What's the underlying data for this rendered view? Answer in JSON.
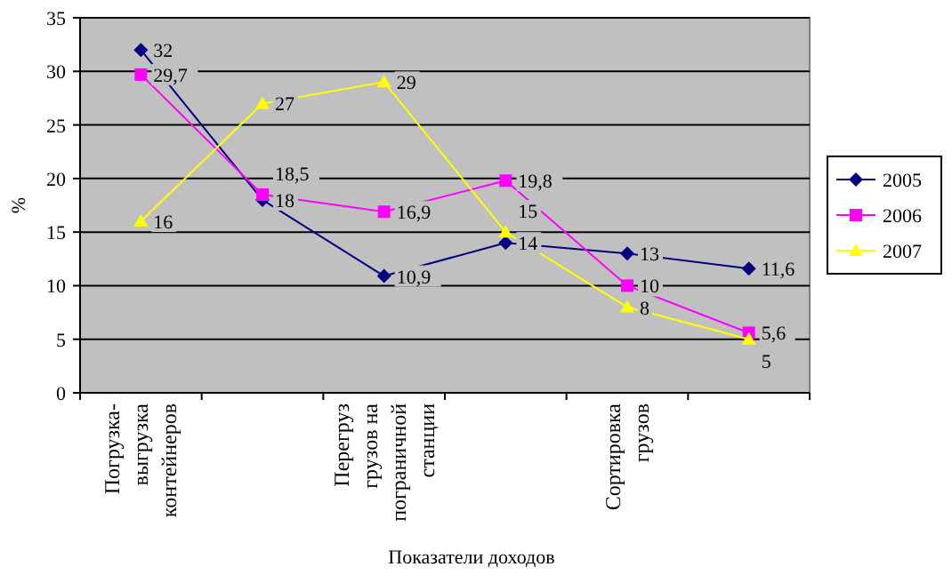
{
  "chart_data": {
    "type": "line",
    "xlabel": "Показатели доходов",
    "ylabel": "%",
    "categories": [
      "Погрузка-выгрузка контейнеров",
      null,
      "Перегруз грузов на пограничной станции",
      null,
      "Сортировка грузов",
      null
    ],
    "ylim": [
      0,
      35
    ],
    "yticks": [
      0,
      5,
      10,
      15,
      20,
      25,
      30,
      35
    ],
    "grid": "y",
    "legend": "right",
    "series": [
      {
        "name": "2005",
        "color": "#000080",
        "marker": "diamond",
        "values": [
          32,
          18,
          10.9,
          14,
          13,
          11.6
        ],
        "value_labels": [
          "32",
          "18",
          "10,9",
          "14",
          "13",
          "11,6"
        ]
      },
      {
        "name": "2006",
        "color": "#ff00ff",
        "marker": "square",
        "values": [
          29.7,
          18.5,
          16.9,
          19.8,
          10,
          5.6
        ],
        "value_labels": [
          "29,7",
          "18,5",
          "16,9",
          "19,8",
          "10",
          "5,6"
        ]
      },
      {
        "name": "2007",
        "color": "#ffff00",
        "marker": "triangle",
        "values": [
          16,
          27,
          29,
          15,
          8,
          5
        ],
        "value_labels": [
          "16",
          "27",
          "29",
          "15",
          "8",
          "5"
        ]
      }
    ]
  }
}
